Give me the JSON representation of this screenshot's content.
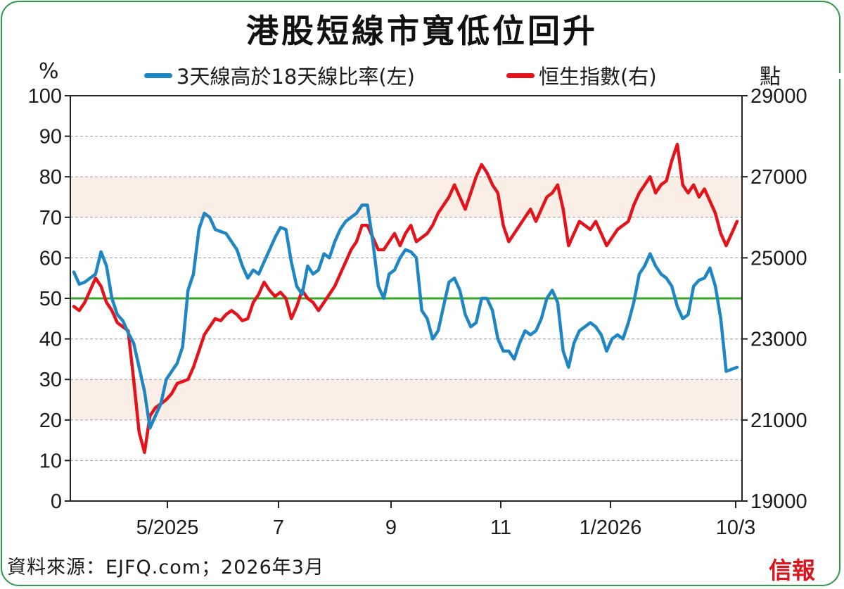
{
  "title": "港股短線市寬低位回升",
  "legend": {
    "series1_label": "3天線高於18天線比率(左)",
    "series2_label": "恒生指數(右)"
  },
  "left_unit": "%",
  "right_unit": "點",
  "source": "資料來源：EJFQ.com；2026年3月",
  "logo": "信報",
  "colors": {
    "series1": "#1e86c2",
    "series2": "#e3121b",
    "ref_line": "#3aa32a",
    "band": "#fbeee6",
    "border": "#2e9a46"
  },
  "chart_data": {
    "type": "line",
    "title": "港股短線市寬低位回升",
    "x_ticks": [
      "5/2025",
      "7",
      "9",
      "11",
      "1/2026",
      "10/3"
    ],
    "left_axis": {
      "unit": "%",
      "range": [
        0,
        100
      ],
      "ticks": [
        0,
        10,
        20,
        30,
        40,
        50,
        60,
        70,
        80,
        90,
        100
      ]
    },
    "right_axis": {
      "unit": "點",
      "range": [
        19000,
        29000
      ],
      "ticks": [
        19000,
        21000,
        23000,
        25000,
        27000,
        29000
      ]
    },
    "reference_line": {
      "axis": "left",
      "value": 50
    },
    "shaded_bands": [
      {
        "axis": "left",
        "from": 70,
        "to": 80
      },
      {
        "axis": "left",
        "from": 20,
        "to": 30
      }
    ],
    "grid": "horizontal-dashed",
    "series": [
      {
        "name": "3天線高於18天線比率(左)",
        "axis": "left",
        "values": [
          56.5,
          53.5,
          54,
          55,
          56,
          61.5,
          58,
          50,
          46,
          44.5,
          41.5,
          39,
          33,
          27,
          18,
          21,
          24,
          30,
          32,
          34,
          38,
          52,
          56,
          67,
          71,
          70,
          67,
          66.5,
          66,
          64,
          62,
          58,
          55,
          57,
          56,
          59,
          62,
          65,
          67.5,
          67,
          59,
          53,
          51,
          58,
          56,
          57,
          61,
          60,
          64,
          67,
          69,
          70,
          71,
          73,
          73,
          64,
          53,
          50,
          56,
          57,
          60,
          62,
          61.5,
          60,
          47,
          45,
          40,
          42,
          48,
          54,
          55,
          52,
          46,
          43,
          44,
          50,
          50,
          47,
          40,
          37,
          37,
          35,
          39,
          42,
          41,
          42,
          45,
          50,
          52,
          49,
          37,
          33,
          39,
          42,
          43,
          44,
          43,
          41,
          37,
          40,
          41,
          40,
          44,
          49,
          56,
          58,
          61,
          58,
          56,
          55,
          53,
          48,
          45,
          46,
          53,
          54.5,
          55,
          57.5,
          53,
          45,
          32,
          32.5,
          33
        ]
      },
      {
        "name": "恒生指數(右)",
        "axis": "right",
        "values": [
          23800,
          23700,
          23900,
          24200,
          24500,
          24300,
          23900,
          23700,
          23400,
          23300,
          23200,
          22000,
          20700,
          20200,
          21100,
          21300,
          21400,
          21500,
          21650,
          21900,
          21950,
          22000,
          22300,
          22700,
          23100,
          23300,
          23500,
          23450,
          23600,
          23700,
          23600,
          23450,
          23500,
          23900,
          24100,
          24400,
          24200,
          24050,
          24150,
          24000,
          23500,
          23800,
          24200,
          24000,
          23900,
          23700,
          23900,
          24100,
          24300,
          24600,
          24900,
          25200,
          25400,
          25800,
          25800,
          25500,
          25200,
          25200,
          25400,
          25600,
          25300,
          25600,
          25800,
          25400,
          25500,
          25600,
          25800,
          26100,
          26300,
          26500,
          26800,
          26500,
          26200,
          26600,
          27000,
          27300,
          27100,
          26800,
          26600,
          25800,
          25400,
          25600,
          25800,
          26000,
          26200,
          25900,
          26200,
          26500,
          26600,
          26800,
          26200,
          25300,
          25600,
          25900,
          25800,
          25700,
          25900,
          25600,
          25300,
          25500,
          25700,
          25800,
          25900,
          26300,
          26600,
          26800,
          27000,
          26600,
          26800,
          26900,
          27400,
          27800,
          26800,
          26600,
          26800,
          26500,
          26700,
          26400,
          26100,
          25600,
          25300,
          25600,
          25900
        ]
      }
    ]
  }
}
